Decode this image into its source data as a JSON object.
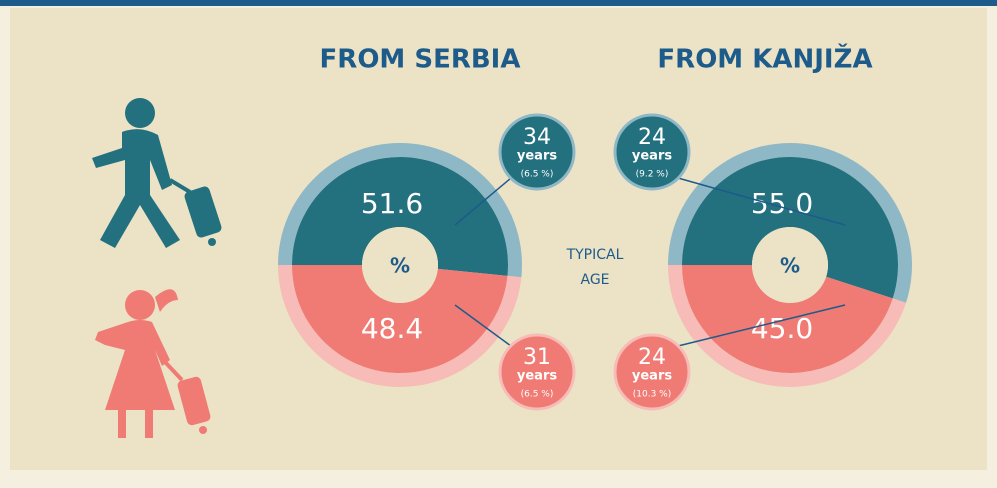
{
  "chart_data": [
    {
      "type": "pie",
      "title": "FROM SERBIA",
      "values": [
        51.6,
        48.4
      ],
      "colors": [
        "#23707f",
        "#f07b74"
      ],
      "ring_colors": [
        "#8fb8c6",
        "#f7bcb7"
      ],
      "center_label": "%",
      "annotations": [
        {
          "age": "34",
          "unit": "years",
          "note": "(6.5 %)"
        },
        {
          "age": "31",
          "unit": "years",
          "note": "(6.5 %)"
        }
      ]
    },
    {
      "type": "pie",
      "title": "FROM KANJIŽA",
      "values": [
        55,
        45
      ],
      "value_labels": [
        "55.0",
        "45.0"
      ],
      "colors": [
        "#23707f",
        "#f07b74"
      ],
      "ring_colors": [
        "#8fb8c6",
        "#f7bcb7"
      ],
      "center_label": "%",
      "annotations": [
        {
          "age": "24",
          "unit": "years",
          "note": "(9.2 %)"
        },
        {
          "age": "24",
          "unit": "years",
          "note": "(10.3 %)"
        }
      ]
    }
  ],
  "caption": [
    "TYPICAL",
    "AGE"
  ]
}
